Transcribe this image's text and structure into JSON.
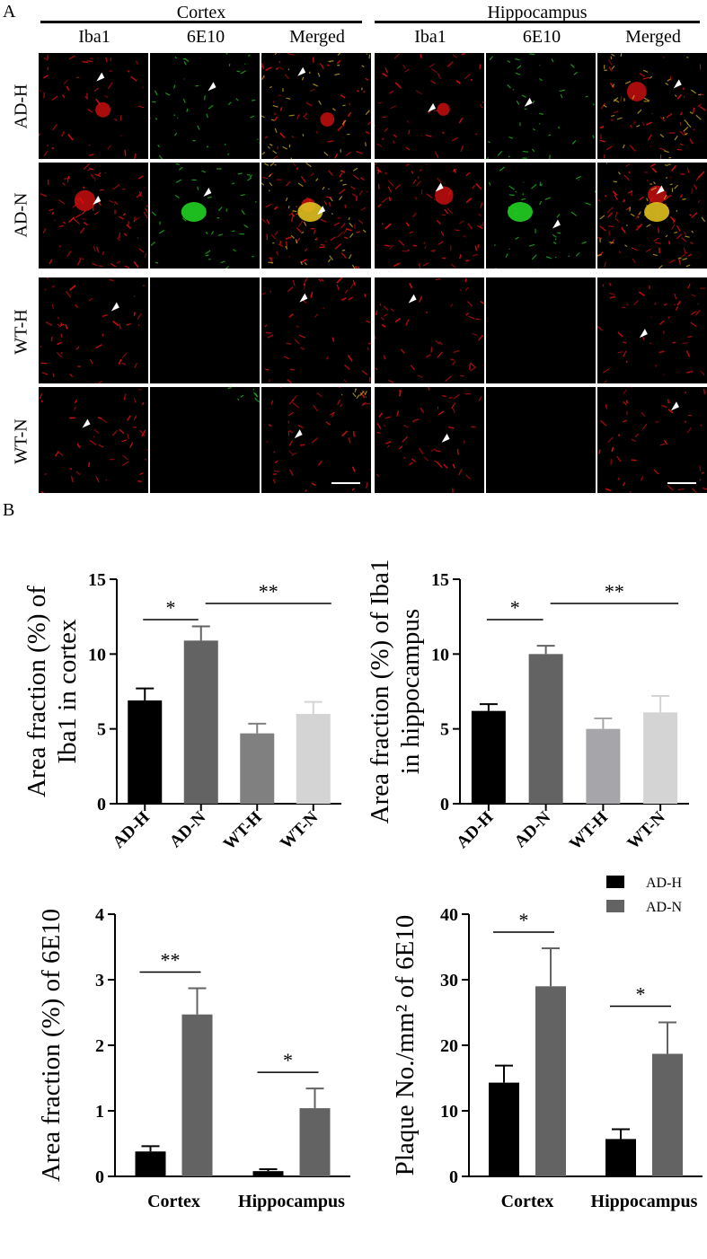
{
  "panelA": {
    "letter": "A",
    "groups": [
      {
        "title": "Cortex",
        "columns": [
          "Iba1",
          "6E10",
          "Merged"
        ]
      },
      {
        "title": "Hippocampus",
        "columns": [
          "Iba1",
          "6E10",
          "Merged"
        ]
      }
    ],
    "rows": [
      "AD-H",
      "AD-N",
      "WT-H",
      "WT-N"
    ],
    "channel_colors": {
      "iba1": "#e01010",
      "6e10": "#22d022",
      "merged": "#e0c020"
    }
  },
  "panelB": {
    "letter": "B"
  },
  "chart_data": [
    {
      "type": "bar",
      "ylabel": [
        "Area fraction (%) of",
        "Iba1 in cortex"
      ],
      "categories": [
        "AD-H",
        "AD-N",
        "WT-H",
        "WT-N"
      ],
      "values": [
        6.9,
        10.9,
        4.7,
        6.0
      ],
      "errors": [
        0.8,
        0.95,
        0.65,
        0.8
      ],
      "colors": [
        "#000000",
        "#636363",
        "#808080",
        "#d4d4d4"
      ],
      "ylim": [
        0,
        15
      ],
      "yticks": [
        "0",
        "5",
        "10",
        "15"
      ],
      "sig": [
        {
          "from": 0,
          "to": 1,
          "label": "*"
        },
        {
          "from": 1,
          "to": 3,
          "label": "**"
        }
      ]
    },
    {
      "type": "bar",
      "ylabel": [
        "Area fraction (%) of Iba1",
        "in hippocampus"
      ],
      "categories": [
        "AD-H",
        "AD-N",
        "WT-H",
        "WT-N"
      ],
      "values": [
        6.2,
        10.0,
        5.0,
        6.1
      ],
      "errors": [
        0.45,
        0.55,
        0.7,
        1.1
      ],
      "colors": [
        "#000000",
        "#636363",
        "#a6a6aa",
        "#d4d4d4"
      ],
      "ylim": [
        0,
        15
      ],
      "yticks": [
        "0",
        "5",
        "10",
        "15"
      ],
      "sig": [
        {
          "from": 0,
          "to": 1,
          "label": "*"
        },
        {
          "from": 1,
          "to": 3,
          "label": "**"
        }
      ]
    },
    {
      "type": "bar",
      "ylabel": [
        "Area fraction (%) of 6E10"
      ],
      "categories": [
        "Cortex",
        "Hippocampus"
      ],
      "series": [
        {
          "name": "AD-H",
          "values": [
            0.38,
            0.08
          ],
          "errors": [
            0.08,
            0.03
          ],
          "color": "#000000"
        },
        {
          "name": "AD-N",
          "values": [
            2.47,
            1.04
          ],
          "errors": [
            0.4,
            0.3
          ],
          "color": "#636363"
        }
      ],
      "ylim": [
        0,
        4
      ],
      "yticks": [
        "0",
        "1",
        "2",
        "3",
        "4"
      ],
      "sig": [
        {
          "category": 0,
          "label": "**"
        },
        {
          "category": 1,
          "label": "*"
        }
      ]
    },
    {
      "type": "bar",
      "ylabel": [
        "Plaque No./mm² of 6E10"
      ],
      "categories": [
        "Cortex",
        "Hippocampus"
      ],
      "series": [
        {
          "name": "AD-H",
          "values": [
            14.3,
            5.7
          ],
          "errors": [
            2.6,
            1.5
          ],
          "color": "#000000"
        },
        {
          "name": "AD-N",
          "values": [
            29.0,
            18.7
          ],
          "errors": [
            5.8,
            4.8
          ],
          "color": "#636363"
        }
      ],
      "ylim": [
        0,
        40
      ],
      "yticks": [
        "0",
        "10",
        "20",
        "30",
        "40"
      ],
      "legend": "top-right",
      "sig": [
        {
          "category": 0,
          "label": "*"
        },
        {
          "category": 1,
          "label": "*"
        }
      ]
    }
  ]
}
